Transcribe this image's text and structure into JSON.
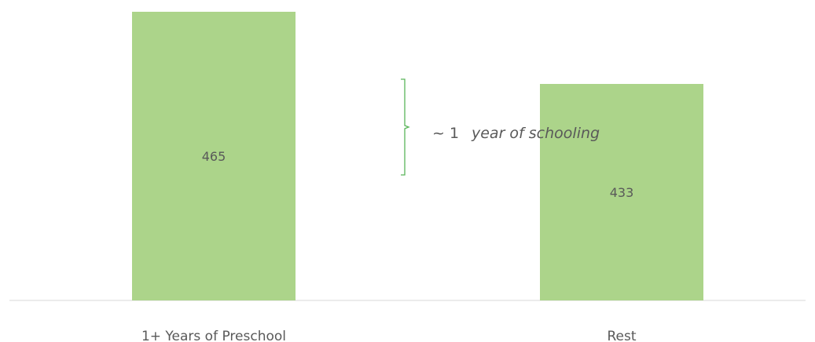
{
  "chart_data": {
    "type": "bar",
    "categories": [
      "1+ Years of Preschool",
      "Rest"
    ],
    "values": [
      465,
      433
    ],
    "data_labels": [
      "465",
      "433"
    ],
    "bar_color": "#acd48a",
    "axis_color": "#d9d9d9",
    "text_color": "#595959",
    "annotation": {
      "prefix": "~ 1",
      "text": "year of schooling",
      "bracket_color": "#5ab55a"
    },
    "gridlines": false,
    "legend": "none"
  }
}
